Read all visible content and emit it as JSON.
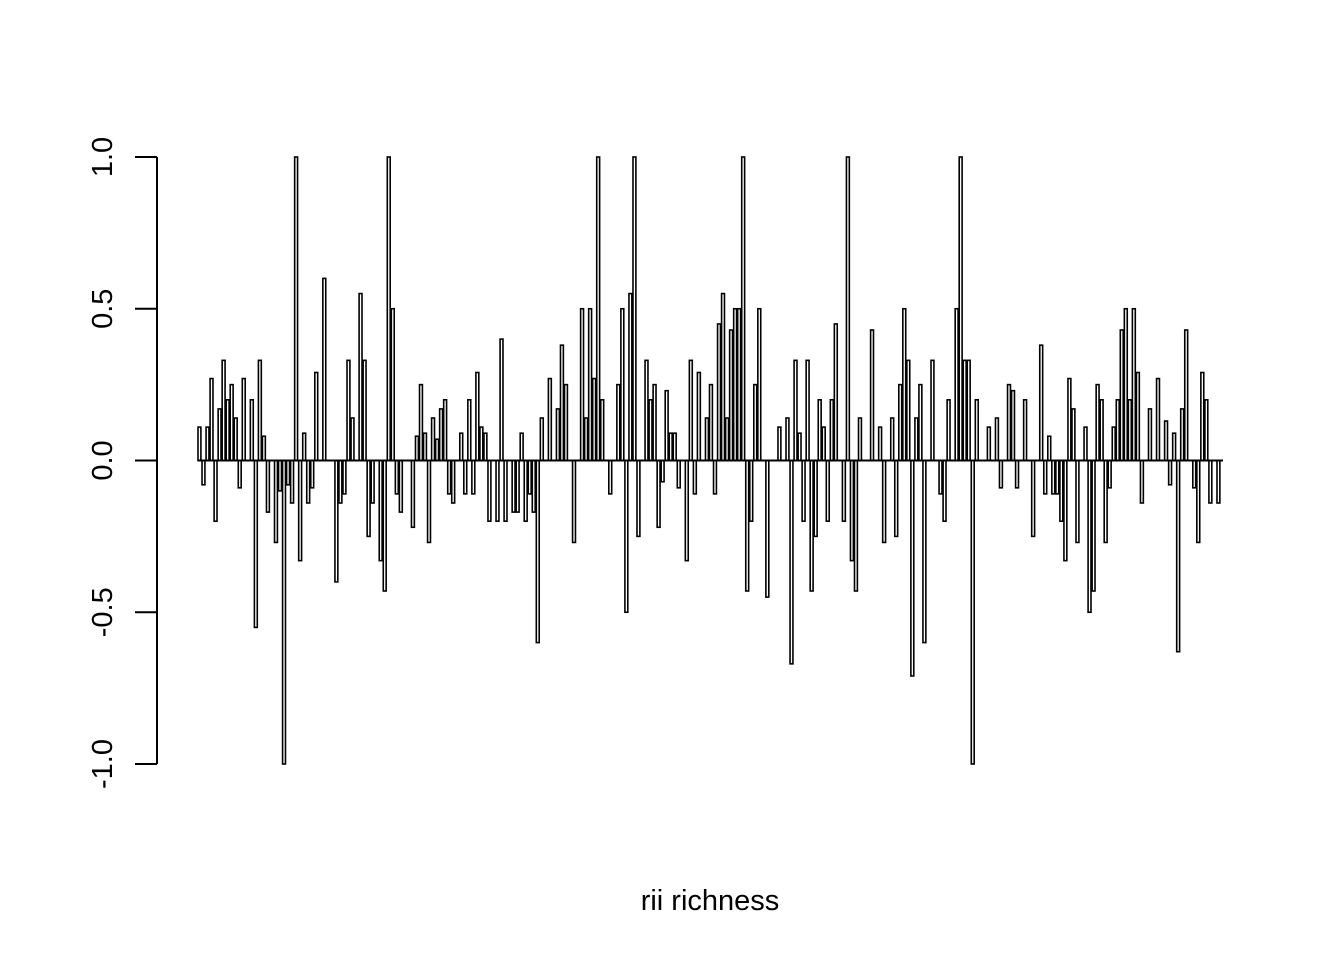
{
  "chart_data": {
    "type": "bar",
    "title": "",
    "xlabel": "rii richness",
    "ylabel": "",
    "ylim": [
      -1.0,
      1.0
    ],
    "yticks": [
      -1.0,
      -0.5,
      0.0,
      0.5,
      1.0
    ],
    "ytick_labels": [
      "-1.0",
      "-0.5",
      "0.0",
      "0.5",
      "1.0"
    ],
    "grid": false,
    "legend": "none",
    "values": [
      0.11,
      -0.08,
      0.11,
      0.27,
      -0.2,
      0.17,
      0.33,
      0.2,
      0.25,
      0.14,
      -0.09,
      0.27,
      0.0,
      0.2,
      -0.55,
      0.33,
      0.08,
      -0.17,
      0.0,
      -0.27,
      -0.1,
      -1.0,
      -0.08,
      -0.14,
      1.0,
      -0.33,
      0.09,
      -0.14,
      -0.09,
      0.29,
      0.0,
      0.6,
      0.0,
      0.0,
      -0.4,
      -0.14,
      -0.11,
      0.33,
      0.14,
      0.0,
      0.55,
      0.33,
      -0.25,
      -0.14,
      0.0,
      -0.33,
      -0.43,
      1.0,
      0.5,
      -0.11,
      -0.17,
      0.0,
      0.0,
      -0.22,
      0.08,
      0.25,
      0.09,
      -0.27,
      0.14,
      0.07,
      0.17,
      0.2,
      -0.11,
      -0.14,
      0.0,
      0.09,
      -0.11,
      0.2,
      -0.11,
      0.29,
      0.11,
      0.09,
      -0.2,
      0.0,
      -0.2,
      0.4,
      -0.2,
      0.0,
      -0.17,
      -0.17,
      0.09,
      -0.2,
      -0.11,
      -0.17,
      -0.6,
      0.14,
      0.0,
      0.27,
      0.0,
      0.17,
      0.38,
      0.25,
      0.0,
      -0.27,
      0.0,
      0.5,
      0.14,
      0.5,
      0.27,
      1.0,
      0.2,
      0.0,
      -0.11,
      0.0,
      0.25,
      0.5,
      -0.5,
      0.55,
      1.0,
      -0.25,
      0.0,
      0.33,
      0.2,
      0.25,
      -0.22,
      -0.07,
      0.23,
      0.09,
      0.09,
      -0.09,
      0.0,
      -0.33,
      0.33,
      -0.11,
      0.29,
      0.0,
      0.14,
      0.25,
      -0.11,
      0.45,
      0.55,
      0.14,
      0.43,
      0.5,
      0.5,
      1.0,
      -0.43,
      -0.2,
      0.25,
      0.5,
      0.0,
      -0.45,
      0.0,
      0.0,
      0.11,
      0.0,
      0.14,
      -0.67,
      0.33,
      0.09,
      -0.2,
      0.33,
      -0.43,
      -0.25,
      0.2,
      0.11,
      -0.2,
      0.2,
      0.45,
      0.0,
      -0.2,
      1.0,
      -0.33,
      -0.43,
      0.14,
      0.0,
      0.0,
      0.43,
      0.0,
      0.11,
      -0.27,
      0.0,
      0.14,
      -0.25,
      0.25,
      0.5,
      0.33,
      -0.71,
      0.14,
      0.25,
      -0.6,
      0.0,
      0.33,
      0.0,
      -0.11,
      -0.2,
      0.2,
      0.0,
      0.5,
      1.0,
      0.33,
      0.33,
      -1.0,
      0.2,
      0.0,
      0.0,
      0.11,
      0.0,
      0.14,
      -0.09,
      0.0,
      0.25,
      0.23,
      -0.09,
      0.0,
      0.2,
      0.0,
      -0.25,
      0.0,
      0.38,
      -0.11,
      0.08,
      -0.11,
      -0.11,
      -0.2,
      -0.33,
      0.27,
      0.17,
      -0.27,
      0.0,
      0.11,
      -0.5,
      -0.43,
      0.25,
      0.2,
      -0.27,
      -0.09,
      0.11,
      0.2,
      0.43,
      0.5,
      0.2,
      0.5,
      0.29,
      -0.14,
      0.0,
      0.17,
      0.0,
      0.27,
      0.0,
      0.13,
      -0.08,
      0.09,
      -0.63,
      0.17,
      0.43,
      0.0,
      -0.09,
      -0.27,
      0.29,
      0.2,
      -0.14,
      0.0,
      -0.14
    ]
  }
}
